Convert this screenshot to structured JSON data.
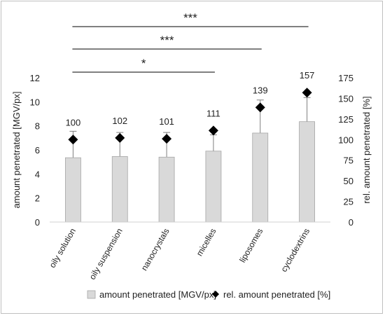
{
  "chart_data": {
    "type": "bar",
    "categories": [
      "oily solution",
      "oily suspension",
      "nanocrystals",
      "micelles",
      "liposomes",
      "cyclodextrins"
    ],
    "series": [
      {
        "name": "amount penetrated [MGV/px]",
        "kind": "bar",
        "axis": "left",
        "color": "#d9d9d9",
        "values": [
          5.35,
          5.45,
          5.4,
          5.9,
          7.4,
          8.35
        ],
        "error_upper": [
          7.55,
          7.45,
          7.45,
          7.25,
          10.15,
          10.35
        ]
      },
      {
        "name": "rel. amount penetrated [%]",
        "kind": "marker",
        "marker": "diamond",
        "axis": "right",
        "color": "#000000",
        "values": [
          100,
          102,
          101,
          111,
          139,
          157
        ],
        "data_labels": [
          "100",
          "102",
          "101",
          "111",
          "139",
          "157"
        ]
      }
    ],
    "ylabel": "amount penetrated [MGV/px]",
    "y2label": "rel. amount penetrated [%]",
    "ylim": [
      0,
      12
    ],
    "y2lim": [
      0,
      175
    ],
    "yticks": [
      "0",
      "2",
      "4",
      "6",
      "8",
      "10",
      "12"
    ],
    "y2ticks": [
      "0",
      "25",
      "50",
      "75",
      "100",
      "125",
      "150",
      "175"
    ],
    "significance": [
      {
        "from": 0,
        "to": 3,
        "label": "*"
      },
      {
        "from": 0,
        "to": 4,
        "label": "***"
      },
      {
        "from": 0,
        "to": 5,
        "label": "***"
      }
    ],
    "legend_position": "bottom",
    "grid": false
  }
}
